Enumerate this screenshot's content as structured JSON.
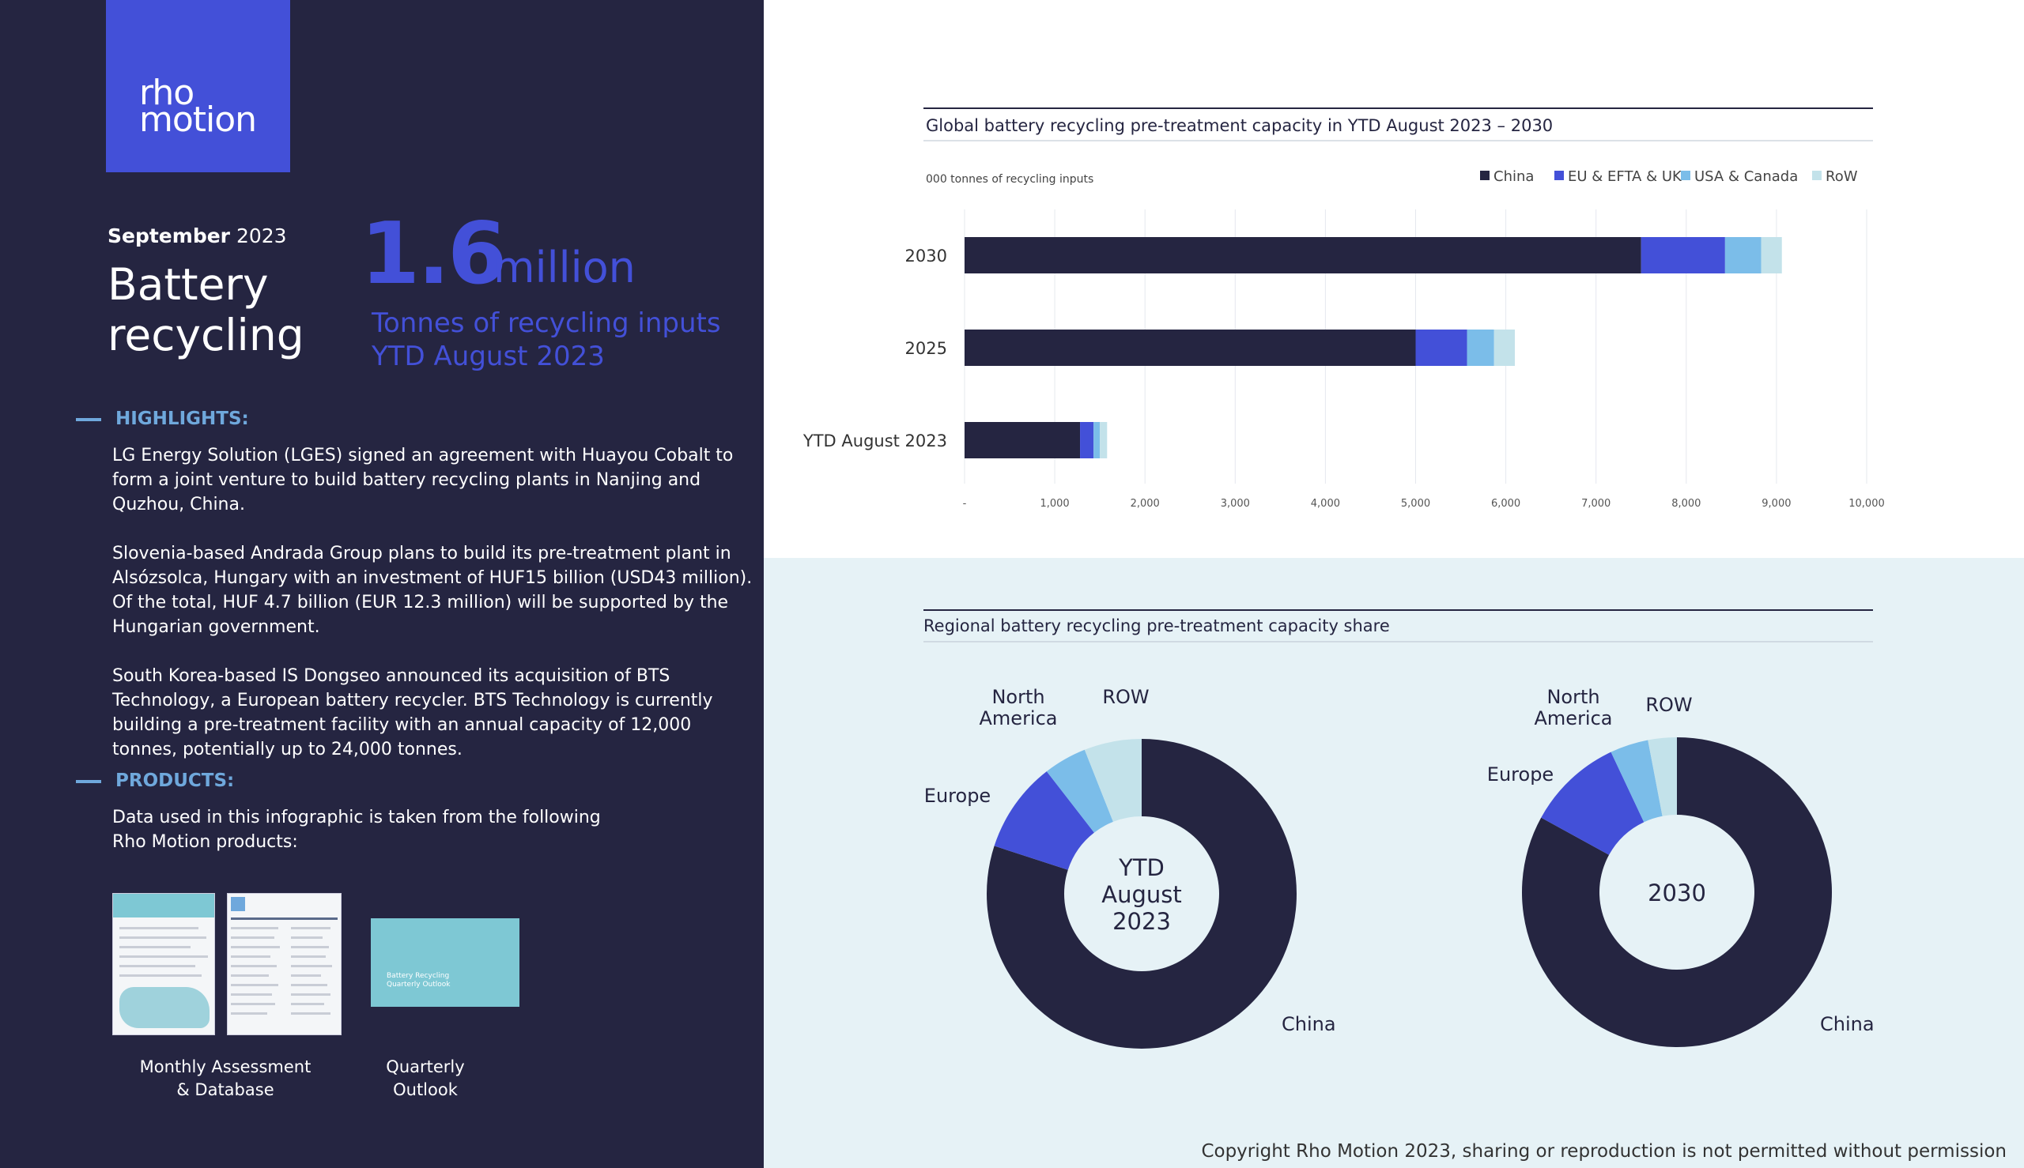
{
  "logo": {
    "line1": "rho",
    "line2": "motion"
  },
  "header": {
    "month": "September",
    "year": "2023",
    "title": "Battery recycling"
  },
  "headline": {
    "number": "1.6",
    "unit": "million",
    "subtitle_line1": "Tonnes of recycling inputs",
    "subtitle_line2": "YTD August 2023"
  },
  "highlights": {
    "title": "HIGHLIGHTS:",
    "items": [
      "LG Energy Solution (LGES) signed an agreement with Huayou Cobalt to form a joint venture to build battery recycling plants in Nanjing and Quzhou, China.",
      "Slovenia-based Andrada Group plans to build its pre-treatment plant in Alsózsolca, Hungary with an investment of HUF15 billion (USD43 million). Of the total, HUF 4.7 billion (EUR 12.3 million) will be supported by the Hungarian government.",
      "South Korea-based IS Dongseo announced its acquisition of BTS Technology, a European battery recycler. BTS Technology is currently building a pre-treatment facility with an annual capacity of 12,000 tonnes, potentially up to 24,000 tonnes."
    ]
  },
  "products": {
    "title": "PRODUCTS:",
    "description": "Data used in this infographic is taken from the following Rho Motion products:",
    "items": [
      {
        "label_line1": "Monthly Assessment",
        "label_line2": "& Database"
      },
      {
        "label_line1": "Quarterly",
        "label_line2": "Outlook"
      }
    ],
    "thumb_text": "Battery Recycling Quarterly Outlook"
  },
  "colors": {
    "china": "#252541",
    "eu": "#4350d8",
    "usa": "#7bbde9",
    "row": "#c3e2ea",
    "accent": "#4350d8",
    "dark_bg": "#252541",
    "light_bg": "#e6f2f6"
  },
  "chart_data": [
    {
      "type": "bar",
      "orientation": "horizontal",
      "stacked": true,
      "title": "Global battery recycling pre-treatment capacity in YTD August 2023 – 2030",
      "ylabel": "000 tonnes of recycling inputs",
      "categories": [
        "2030",
        "2025",
        "YTD August 2023"
      ],
      "series": [
        {
          "name": "China",
          "values": [
            7500,
            5000,
            1280
          ]
        },
        {
          "name": "EU & EFTA & UK",
          "values": [
            930,
            570,
            150
          ]
        },
        {
          "name": "USA & Canada",
          "values": [
            400,
            300,
            70
          ]
        },
        {
          "name": "RoW",
          "values": [
            230,
            230,
            80
          ]
        }
      ],
      "xlim": [
        0,
        10000
      ],
      "xticks": [
        "-",
        "1,000",
        "2,000",
        "3,000",
        "4,000",
        "5,000",
        "6,000",
        "7,000",
        "8,000",
        "9,000",
        "10,000"
      ],
      "grid": true,
      "legend": "top-right"
    },
    {
      "type": "pie",
      "title": "Regional battery recycling pre-treatment capacity share",
      "charts": [
        {
          "center_label": [
            "YTD",
            "August",
            "2023"
          ],
          "slices": [
            {
              "name": "China",
              "label": "China",
              "value": 80
            },
            {
              "name": "Europe",
              "label": "Europe",
              "value": 9.5
            },
            {
              "name": "North America",
              "label": "North America",
              "value": 4.5
            },
            {
              "name": "ROW",
              "label": "ROW",
              "value": 6
            }
          ]
        },
        {
          "center_label": [
            "2030"
          ],
          "slices": [
            {
              "name": "China",
              "label": "China",
              "value": 83
            },
            {
              "name": "Europe",
              "label": "Europe",
              "value": 10
            },
            {
              "name": "North America",
              "label": "North America",
              "value": 4
            },
            {
              "name": "ROW",
              "label": "ROW",
              "value": 3
            }
          ]
        }
      ]
    }
  ],
  "footer": {
    "copyright": "Copyright Rho Motion 2023, sharing or reproduction is not permitted without permission"
  }
}
